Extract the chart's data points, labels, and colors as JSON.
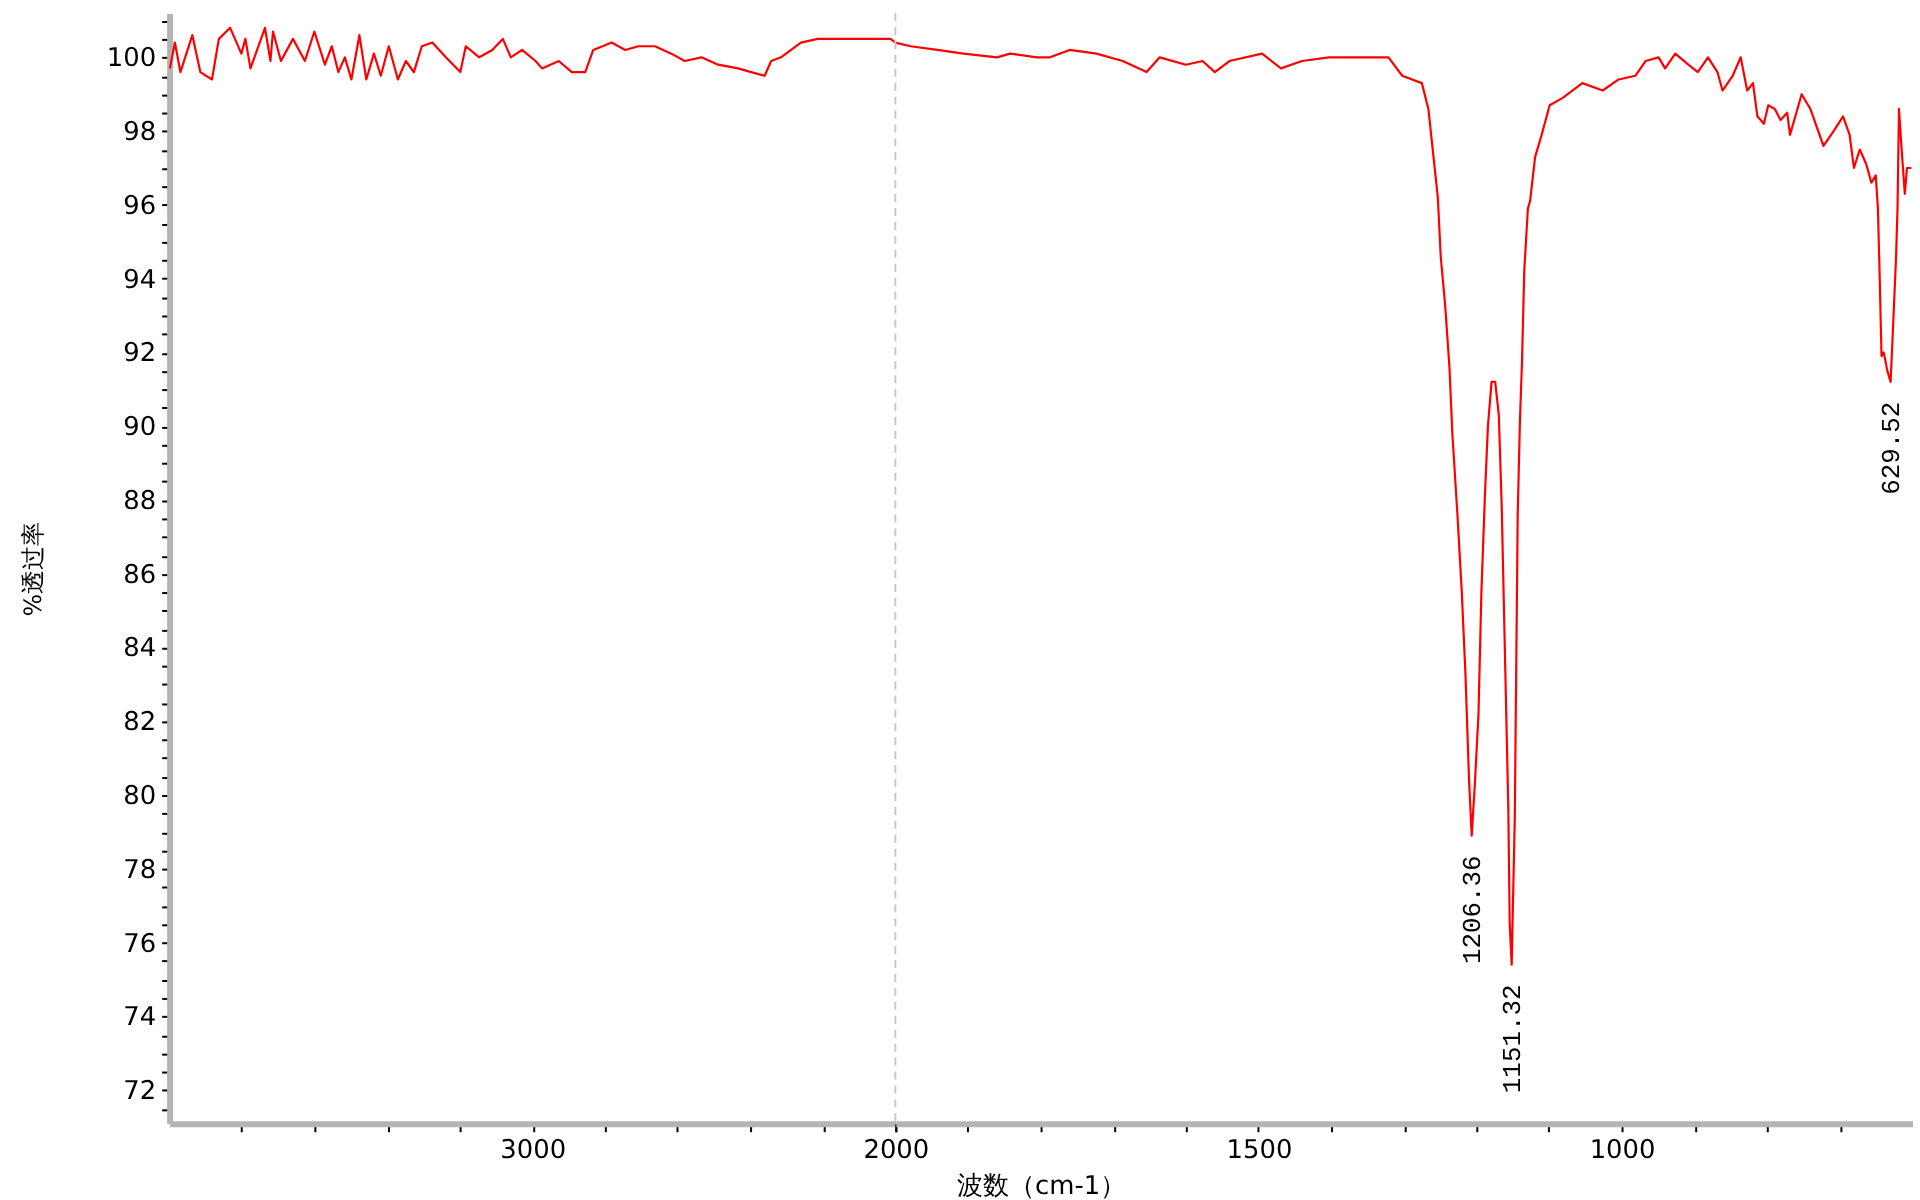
{
  "chart_data": [
    {
      "type": "line",
      "ylabel": "%透过率",
      "xlim": [
        4000,
        2000
      ],
      "ylim": [
        71.1,
        101.2
      ],
      "xticks": [
        {
          "value": 3800,
          "label": null
        },
        {
          "value": 3600,
          "label": null
        },
        {
          "value": 3400,
          "label": null
        },
        {
          "value": 3200,
          "label": null
        },
        3000,
        {
          "value": 2800,
          "label": null
        },
        {
          "value": 2600,
          "label": null
        },
        {
          "value": 2400,
          "label": null
        },
        {
          "value": 2200,
          "label": null
        },
        2000
      ],
      "yticks": [
        {
          "value": 71.5,
          "label": null
        },
        72,
        {
          "value": 72.5,
          "label": null
        },
        {
          "value": 73,
          "label": null
        },
        {
          "value": 73.5,
          "label": null
        },
        74,
        {
          "value": 74.5,
          "label": null
        },
        {
          "value": 75,
          "label": null
        },
        {
          "value": 75.5,
          "label": null
        },
        76,
        {
          "value": 76.5,
          "label": null
        },
        {
          "value": 77,
          "label": null
        },
        {
          "value": 77.5,
          "label": null
        },
        78,
        {
          "value": 78.5,
          "label": null
        },
        {
          "value": 79,
          "label": null
        },
        {
          "value": 79.5,
          "label": null
        },
        80,
        {
          "value": 80.5,
          "label": null
        },
        {
          "value": 81,
          "label": null
        },
        {
          "value": 81.5,
          "label": null
        },
        82,
        {
          "value": 82.5,
          "label": null
        },
        {
          "value": 83,
          "label": null
        },
        {
          "value": 83.5,
          "label": null
        },
        84,
        {
          "value": 84.5,
          "label": null
        },
        {
          "value": 85,
          "label": null
        },
        {
          "value": 85.5,
          "label": null
        },
        86,
        {
          "value": 86.5,
          "label": null
        },
        {
          "value": 87,
          "label": null
        },
        {
          "value": 87.5,
          "label": null
        },
        88,
        {
          "value": 88.5,
          "label": null
        },
        {
          "value": 89,
          "label": null
        },
        {
          "value": 89.5,
          "label": null
        },
        90,
        {
          "value": 90.5,
          "label": null
        },
        {
          "value": 91,
          "label": null
        },
        {
          "value": 91.5,
          "label": null
        },
        92,
        {
          "value": 92.5,
          "label": null
        },
        {
          "value": 93,
          "label": null
        },
        {
          "value": 93.5,
          "label": null
        },
        94,
        {
          "value": 94.5,
          "label": null
        },
        {
          "value": 95,
          "label": null
        },
        {
          "value": 95.5,
          "label": null
        },
        96,
        {
          "value": 96.5,
          "label": null
        },
        {
          "value": 97,
          "label": null
        },
        {
          "value": 97.5,
          "label": null
        },
        98,
        {
          "value": 98.5,
          "label": null
        },
        {
          "value": 99,
          "label": null
        },
        {
          "value": 99.5,
          "label": null
        },
        100,
        {
          "value": 100.5,
          "label": null
        },
        {
          "value": 101,
          "label": null
        }
      ],
      "x": [
        3998,
        3984,
        3969,
        3936,
        3914,
        3882,
        3863,
        3832,
        3801,
        3790,
        3776,
        3736,
        3721,
        3714,
        3692,
        3659,
        3626,
        3600,
        3571,
        3552,
        3534,
        3516,
        3498,
        3476,
        3457,
        3436,
        3417,
        3395,
        3370,
        3348,
        3326,
        3304,
        3275,
        3238,
        3198,
        3183,
        3146,
        3110,
        3081,
        3059,
        3028,
        2991,
        2973,
        2927,
        2891,
        2854,
        2832,
        2781,
        2744,
        2708,
        2662,
        2617,
        2580,
        2534,
        2488,
        2433,
        2397,
        2360,
        2342,
        2315,
        2287,
        2260,
        2214,
        2141,
        2068,
        2013,
        2000
      ],
      "series": [
        {
          "color": "#ff0000",
          "line_style": "solid",
          "values": [
            99.7,
            100.4,
            99.6,
            100.6,
            99.6,
            99.4,
            100.5,
            100.8,
            100.1,
            100.5,
            99.7,
            100.8,
            99.9,
            100.7,
            99.9,
            100.5,
            99.9,
            100.7,
            99.8,
            100.3,
            99.6,
            100.0,
            99.4,
            100.6,
            99.4,
            100.1,
            99.5,
            100.3,
            99.4,
            99.9,
            99.6,
            100.3,
            100.4,
            100.0,
            99.6,
            100.3,
            100.0,
            100.2,
            100.5,
            100.0,
            100.2,
            99.9,
            99.7,
            99.9,
            99.6,
            99.6,
            100.2,
            100.4,
            100.2,
            100.3,
            100.3,
            100.1,
            99.9,
            100.0,
            99.8,
            99.7,
            99.6,
            99.5,
            99.9,
            100.0,
            100.2,
            100.4,
            100.5,
            100.5,
            100.5,
            100.5,
            100.4
          ]
        }
      ]
    },
    {
      "type": "line",
      "xlabel": "波数（cm-1）",
      "xlim": [
        2000,
        600
      ],
      "ylim": [
        71.1,
        101.2
      ],
      "tick_labels": "x",
      "xticks": [
        {
          "value": 2000,
          "label": null
        },
        {
          "value": 1900,
          "label": null
        },
        {
          "value": 1800,
          "label": null
        },
        {
          "value": 1700,
          "label": null
        },
        {
          "value": 1600,
          "label": null
        },
        1500,
        {
          "value": 1400,
          "label": null
        },
        {
          "value": 1300,
          "label": null
        },
        {
          "value": 1200,
          "label": null
        },
        {
          "value": 1100,
          "label": null
        },
        1000,
        {
          "value": 900,
          "label": null
        },
        {
          "value": 800,
          "label": null
        },
        {
          "value": 700,
          "label": null
        }
      ],
      "x": [
        2000,
        1979,
        1942,
        1906,
        1860,
        1842,
        1805,
        1787,
        1760,
        1723,
        1687,
        1654,
        1636,
        1600,
        1577,
        1560,
        1540,
        1495,
        1469,
        1440,
        1403,
        1366,
        1321,
        1302,
        1275,
        1266,
        1253,
        1249,
        1243,
        1237,
        1233,
        1226,
        1220,
        1215,
        1210,
        1206.36,
        1202,
        1197,
        1193,
        1188,
        1184,
        1179,
        1174,
        1169,
        1165,
        1161,
        1156,
        1154,
        1151.32,
        1147,
        1143,
        1140,
        1137,
        1134,
        1129,
        1126,
        1119,
        1110,
        1099,
        1081,
        1054,
        1026,
        1004,
        981,
        967,
        949,
        940,
        926,
        908,
        895,
        881,
        868,
        861,
        847,
        836,
        827,
        819,
        813,
        804,
        798,
        789,
        781,
        772,
        768,
        752,
        740,
        722,
        708,
        695,
        686,
        680,
        672,
        663,
        656,
        650,
        647,
        645,
        642,
        639,
        634,
        629.52,
        627,
        622,
        620,
        618,
        615,
        610,
        607,
        601
      ],
      "series": [
        {
          "color": "#ff0000",
          "line_style": "solid",
          "values": [
            100.4,
            100.3,
            100.2,
            100.1,
            100.0,
            100.1,
            100.0,
            100.0,
            100.2,
            100.1,
            99.9,
            99.6,
            100.0,
            99.8,
            99.9,
            99.6,
            99.9,
            100.1,
            99.7,
            99.9,
            100.0,
            100.0,
            100.0,
            99.5,
            99.3,
            98.6,
            96.2,
            94.6,
            93.3,
            91.6,
            89.8,
            87.6,
            85.5,
            83.3,
            80.4,
            78.9,
            80.3,
            82.2,
            85.5,
            88.2,
            90.0,
            91.2,
            91.2,
            90.3,
            87.8,
            84.2,
            79.7,
            76.5,
            75.4,
            79.4,
            87.6,
            90.1,
            91.8,
            94.2,
            95.9,
            96.1,
            97.3,
            97.9,
            98.7,
            98.9,
            99.3,
            99.1,
            99.4,
            99.5,
            99.9,
            100.0,
            99.7,
            100.1,
            99.8,
            99.6,
            100.0,
            99.6,
            99.1,
            99.5,
            100.0,
            99.1,
            99.3,
            98.4,
            98.2,
            98.7,
            98.6,
            98.3,
            98.5,
            97.9,
            99.0,
            98.6,
            97.6,
            98.0,
            98.4,
            97.9,
            97.0,
            97.5,
            97.1,
            96.6,
            96.8,
            95.9,
            94.4,
            91.9,
            92.0,
            91.5,
            91.2,
            92.3,
            94.6,
            95.9,
            98.6,
            97.7,
            96.3,
            97.0,
            97.0
          ]
        }
      ],
      "ref_lines": [
        {
          "axis": "x",
          "value": 2000,
          "color": "#c8c8c8",
          "line_style": "dashed"
        }
      ],
      "annotations": [
        {
          "text": "1206.36",
          "x": 1206.36,
          "y": 78.9
        },
        {
          "text": "1151.32",
          "x": 1151.32,
          "y": 75.4
        },
        {
          "text": "629.52",
          "x": 629.52,
          "y": 91.2
        }
      ]
    }
  ]
}
